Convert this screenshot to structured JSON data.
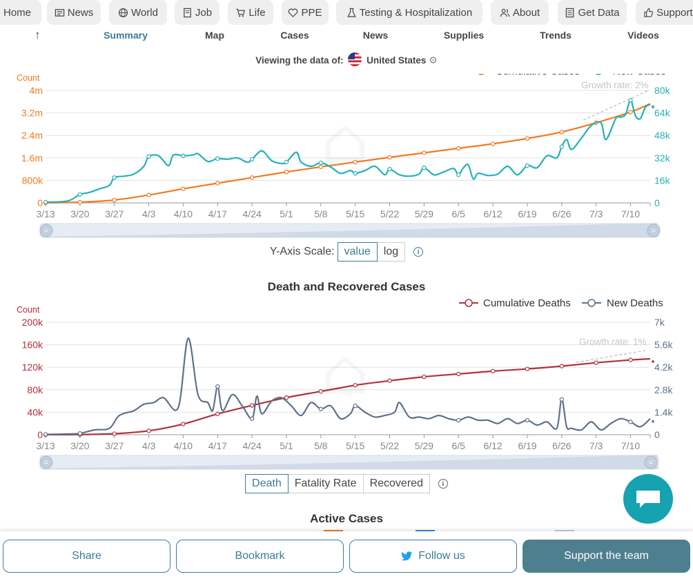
{
  "nav": {
    "items": [
      "Home",
      "News",
      "World",
      "Job",
      "Life",
      "PPE",
      "Testing & Hospitalization",
      "About",
      "Get Data",
      "Support"
    ]
  },
  "subnav": {
    "items": [
      "Summary",
      "Map",
      "Cases",
      "News",
      "Supplies",
      "Trends",
      "Videos"
    ],
    "active": "Summary"
  },
  "viewing": {
    "label": "Viewing the data of:",
    "country": "United States"
  },
  "cases_controls": {
    "label": "Y-Axis Scale:",
    "options": [
      "value",
      "log"
    ],
    "selected": "value"
  },
  "deaths_section": {
    "title": "Death and Recovered Cases"
  },
  "deaths_controls": {
    "options": [
      "Death",
      "Fatality Rate",
      "Recovered"
    ],
    "selected": "Death"
  },
  "active_section": {
    "title": "Active Cases"
  },
  "footer": {
    "share": "Share",
    "bookmark": "Bookmark",
    "follow": "Follow us",
    "support": "Support the team"
  },
  "colors": {
    "accent": "#3b7b95",
    "cumulative_cases": "#f07a1f",
    "new_cases": "#24b1b6",
    "cumulative_deaths": "#b0313c",
    "new_deaths": "#5e7189"
  },
  "chart_data": [
    {
      "type": "line",
      "title": "",
      "left_axis_label": "Count",
      "x_tick_labels": [
        "3/13",
        "3/20",
        "3/27",
        "4/3",
        "4/10",
        "4/17",
        "4/24",
        "5/1",
        "5/8",
        "5/15",
        "5/22",
        "5/29",
        "6/5",
        "6/12",
        "6/19",
        "6/26",
        "7/3",
        "7/10"
      ],
      "yleft_ticks": [
        "0",
        "800k",
        "1.6m",
        "2.4m",
        "3.2m",
        "4m"
      ],
      "yleft_range": [
        0,
        4000000
      ],
      "yright_ticks": [
        "0",
        "16k",
        "32k",
        "48k",
        "64k",
        "80k"
      ],
      "yright_range": [
        0,
        80000
      ],
      "legend": [
        "Cumulative Cases",
        "New Cases"
      ],
      "annotation": "Growth rate: 2%",
      "series": [
        {
          "name": "Cumulative Cases",
          "axis": "left",
          "x": [
            0,
            7,
            14,
            21,
            28,
            35,
            42,
            49,
            56,
            63,
            70,
            77,
            84,
            91,
            98,
            105,
            112,
            119,
            123
          ],
          "values": [
            2000,
            25000,
            100000,
            280000,
            500000,
            700000,
            900000,
            1100000,
            1280000,
            1450000,
            1620000,
            1780000,
            1940000,
            2100000,
            2290000,
            2520000,
            2850000,
            3230000,
            3530000
          ]
        },
        {
          "name": "New Cases",
          "axis": "right",
          "x": [
            0,
            3,
            5,
            7,
            9,
            11,
            13,
            14,
            16,
            18,
            20,
            21,
            23,
            25,
            26,
            28,
            30,
            31,
            33,
            35,
            37,
            39,
            41,
            42,
            44,
            46,
            48,
            49,
            51,
            52,
            54,
            56,
            58,
            60,
            62,
            63,
            65,
            67,
            69,
            70,
            72,
            74,
            76,
            77,
            79,
            81,
            83,
            84,
            85,
            86,
            87,
            88,
            90,
            92,
            94,
            96,
            98,
            100,
            102,
            104,
            105,
            106,
            107,
            109,
            111,
            113,
            114,
            116,
            117,
            118,
            119,
            120,
            121,
            122,
            123
          ],
          "values": [
            500,
            800,
            1900,
            6000,
            7500,
            10000,
            12500,
            18000,
            19000,
            20500,
            26000,
            33000,
            33500,
            26500,
            34000,
            33500,
            34000,
            35000,
            29500,
            31500,
            31000,
            32000,
            29000,
            31000,
            37000,
            30000,
            28000,
            29000,
            36000,
            29000,
            26000,
            28500,
            25500,
            21000,
            23000,
            21000,
            23000,
            26000,
            20000,
            24000,
            20000,
            19000,
            20500,
            25000,
            20000,
            22000,
            24500,
            20000,
            25000,
            27000,
            17000,
            21000,
            19500,
            20500,
            26000,
            20000,
            26500,
            25000,
            33500,
            32000,
            40000,
            45000,
            38000,
            46000,
            55000,
            57000,
            45000,
            60000,
            61000,
            63000,
            73000,
            62000,
            60000,
            68000,
            70000
          ]
        }
      ]
    },
    {
      "type": "line",
      "title": "Death and Recovered Cases",
      "left_axis_label": "Count",
      "x_tick_labels": [
        "3/13",
        "3/20",
        "3/27",
        "4/3",
        "4/10",
        "4/17",
        "4/24",
        "5/1",
        "5/8",
        "5/15",
        "5/22",
        "5/29",
        "6/5",
        "6/12",
        "6/19",
        "6/26",
        "7/3",
        "7/10"
      ],
      "yleft_ticks": [
        "0",
        "40k",
        "80k",
        "120k",
        "160k",
        "200k"
      ],
      "yleft_range": [
        0,
        200000
      ],
      "yright_ticks": [
        "0",
        "1.4k",
        "2.8k",
        "4.2k",
        "5.6k",
        "7k"
      ],
      "yright_range": [
        0,
        7000
      ],
      "legend": [
        "Cumulative Deaths",
        "New Deaths"
      ],
      "annotation": "Growth rate: 1%",
      "series": [
        {
          "name": "Cumulative Deaths",
          "axis": "left",
          "x": [
            0,
            7,
            14,
            21,
            28,
            35,
            42,
            49,
            56,
            63,
            70,
            77,
            84,
            91,
            98,
            105,
            112,
            119,
            123
          ],
          "values": [
            50,
            300,
            1800,
            7000,
            19000,
            37000,
            52000,
            66000,
            77000,
            88000,
            96000,
            103000,
            108000,
            113000,
            117000,
            122000,
            128000,
            133000,
            135000
          ]
        },
        {
          "name": "New Deaths",
          "axis": "right",
          "x": [
            0,
            5,
            7,
            10,
            13,
            15,
            18,
            20,
            22,
            24,
            27,
            29,
            31,
            33,
            34,
            35,
            36,
            38,
            40,
            42,
            43,
            44,
            46,
            48,
            50,
            52,
            54,
            56,
            58,
            60,
            62,
            63,
            65,
            67,
            69,
            71,
            72,
            74,
            76,
            78,
            80,
            82,
            84,
            86,
            88,
            90,
            92,
            94,
            96,
            98,
            100,
            102,
            104,
            105,
            106,
            107,
            109,
            111,
            113,
            115,
            117,
            119,
            121,
            123
          ],
          "values": [
            20,
            50,
            80,
            300,
            400,
            1200,
            1500,
            1900,
            2000,
            2300,
            1700,
            6000,
            2500,
            2000,
            1500,
            3000,
            1500,
            2500,
            1800,
            1000,
            2400,
            1300,
            2100,
            2300,
            1800,
            1200,
            2000,
            1600,
            1800,
            1000,
            1300,
            1800,
            1400,
            1100,
            1200,
            1400,
            2000,
            1100,
            1100,
            1000,
            1200,
            1000,
            900,
            1100,
            900,
            900,
            700,
            1000,
            700,
            900,
            600,
            800,
            400,
            2200,
            500,
            400,
            300,
            800,
            300,
            700,
            1000,
            800,
            500,
            1000
          ]
        }
      ]
    }
  ]
}
